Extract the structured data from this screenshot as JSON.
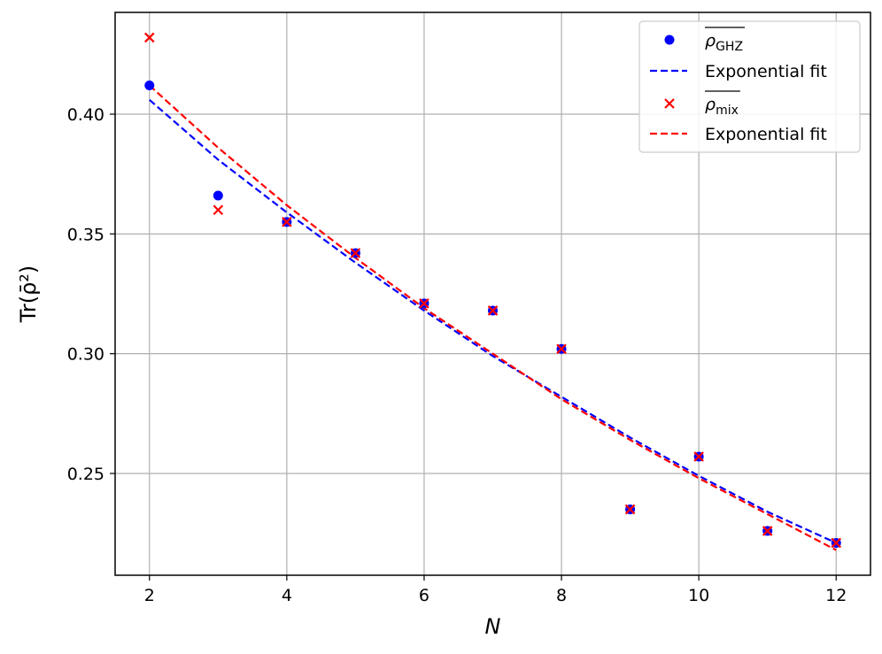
{
  "chart_data": {
    "type": "scatter",
    "xlabel": "N",
    "ylabel": "Tr(ρ̄²)",
    "xlim": [
      1.5,
      12.5
    ],
    "ylim": [
      0.2075,
      0.4425
    ],
    "xticks": [
      2,
      4,
      6,
      8,
      10,
      12
    ],
    "yticks": [
      0.25,
      0.3,
      0.35,
      0.4
    ],
    "xtick_labels": [
      "2",
      "4",
      "6",
      "8",
      "10",
      "12"
    ],
    "ytick_labels": [
      "0.25",
      "0.30",
      "0.35",
      "0.40"
    ],
    "grid": true,
    "legend_position": "top-right",
    "series": [
      {
        "name": "ρ_GHZ",
        "label_base": "ρ",
        "label_sub": "GHZ",
        "kind": "marker",
        "marker": "circle",
        "color": "#0000ff",
        "x": [
          2,
          3,
          4,
          5,
          6,
          7,
          8,
          9,
          10,
          11,
          12
        ],
        "y": [
          0.412,
          0.366,
          0.355,
          0.342,
          0.321,
          0.318,
          0.302,
          0.235,
          0.257,
          0.226,
          0.221
        ]
      },
      {
        "name": "Exponential fit",
        "kind": "line",
        "dash": true,
        "color": "#0000ff",
        "x": [
          2,
          3,
          4,
          5,
          6,
          7,
          8,
          9,
          10,
          11,
          12
        ],
        "y": [
          0.406,
          0.381,
          0.359,
          0.338,
          0.318,
          0.299,
          0.282,
          0.265,
          0.249,
          0.234,
          0.221
        ]
      },
      {
        "name": "ρ_mix",
        "label_base": "ρ",
        "label_sub": "mix",
        "kind": "marker",
        "marker": "x",
        "color": "#ff0000",
        "x": [
          2,
          3,
          4,
          5,
          6,
          7,
          8,
          9,
          10,
          11,
          12
        ],
        "y": [
          0.432,
          0.36,
          0.355,
          0.342,
          0.321,
          0.318,
          0.302,
          0.235,
          0.257,
          0.226,
          0.221
        ]
      },
      {
        "name": "Exponential fit",
        "kind": "line",
        "dash": true,
        "color": "#ff0000",
        "x": [
          2,
          3,
          4,
          5,
          6,
          7,
          8,
          9,
          10,
          11,
          12
        ],
        "y": [
          0.412,
          0.386,
          0.362,
          0.34,
          0.319,
          0.3,
          0.281,
          0.264,
          0.248,
          0.233,
          0.218
        ]
      }
    ]
  }
}
